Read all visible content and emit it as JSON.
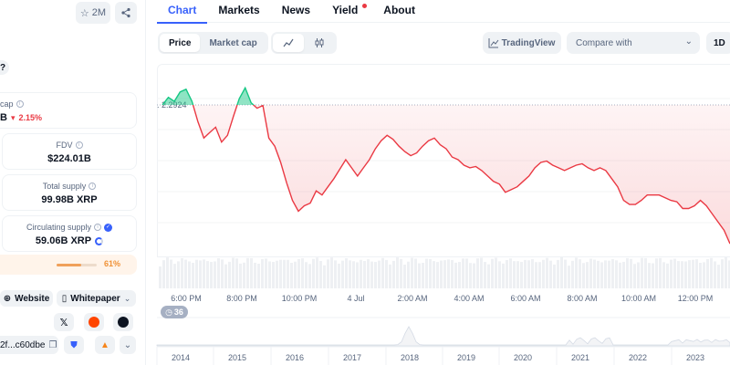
{
  "header": {
    "watchlist_count": "2M"
  },
  "stats": {
    "market_cap_label": "cap",
    "market_cap_value": "B",
    "market_cap_change": "2.15%",
    "fdv_label": "FDV",
    "fdv_value": "$224.01B",
    "total_supply_label": "Total supply",
    "total_supply_value": "99.98B XRP",
    "circulating_supply_label": "Circulating supply",
    "circulating_supply_value": "59.06B XRP",
    "circulating_pct_text": "61%",
    "circulating_pct": 61,
    "question_mark": "?"
  },
  "links": {
    "website_label": "Website",
    "whitepaper_label": "Whitepaper",
    "contract_address": "2f...c60dbe"
  },
  "tabs": [
    {
      "label": "Chart",
      "active": true
    },
    {
      "label": "Markets",
      "active": false
    },
    {
      "label": "News",
      "active": false
    },
    {
      "label": "Yield",
      "active": false
    },
    {
      "label": "About",
      "active": false
    }
  ],
  "toolbar": {
    "price_label": "Price",
    "market_cap_label": "Market cap",
    "tradingview_label": "TradingView",
    "compare_placeholder": "Compare with",
    "range_label": "1D"
  },
  "chart_data": {
    "type": "line",
    "start_price": 2.2924,
    "start_price_label": ". 2.2924",
    "x_ticks": [
      "6:00 PM",
      "8:00 PM",
      "10:00 PM",
      "4 Jul",
      "2:00 AM",
      "4:00 AM",
      "6:00 AM",
      "8:00 AM",
      "10:00 AM",
      "12:00 PM"
    ],
    "year_ticks": [
      "2014",
      "2015",
      "2016",
      "2017",
      "2018",
      "2019",
      "2020",
      "2021",
      "2022",
      "2023"
    ],
    "ylim": [
      2.18,
      2.32
    ],
    "series": [
      {
        "values": [
          2.2924,
          2.298,
          2.295,
          2.302,
          2.304,
          2.295,
          2.28,
          2.268,
          2.272,
          2.276,
          2.265,
          2.27,
          2.284,
          2.297,
          2.305,
          2.294,
          2.29,
          2.292,
          2.268,
          2.262,
          2.25,
          2.235,
          2.222,
          2.214,
          2.218,
          2.22,
          2.229,
          2.226,
          2.232,
          2.238,
          2.245,
          2.252,
          2.246,
          2.24,
          2.246,
          2.252,
          2.26,
          2.266,
          2.27,
          2.267,
          2.262,
          2.258,
          2.255,
          2.257,
          2.262,
          2.266,
          2.268,
          2.263,
          2.26,
          2.254,
          2.252,
          2.248,
          2.246,
          2.247,
          2.244,
          2.24,
          2.236,
          2.234,
          2.228,
          2.23,
          2.232,
          2.236,
          2.24,
          2.246,
          2.25,
          2.251,
          2.248,
          2.246,
          2.244,
          2.246,
          2.248,
          2.249,
          2.246,
          2.244,
          2.246,
          2.244,
          2.238,
          2.232,
          2.222,
          2.219,
          2.219,
          2.222,
          2.226,
          2.226,
          2.226,
          2.224,
          2.222,
          2.221,
          2.216,
          2.216,
          2.218,
          2.222,
          2.218,
          2.212,
          2.206,
          2.2,
          2.19
        ]
      }
    ],
    "zoom_badge": "36"
  }
}
